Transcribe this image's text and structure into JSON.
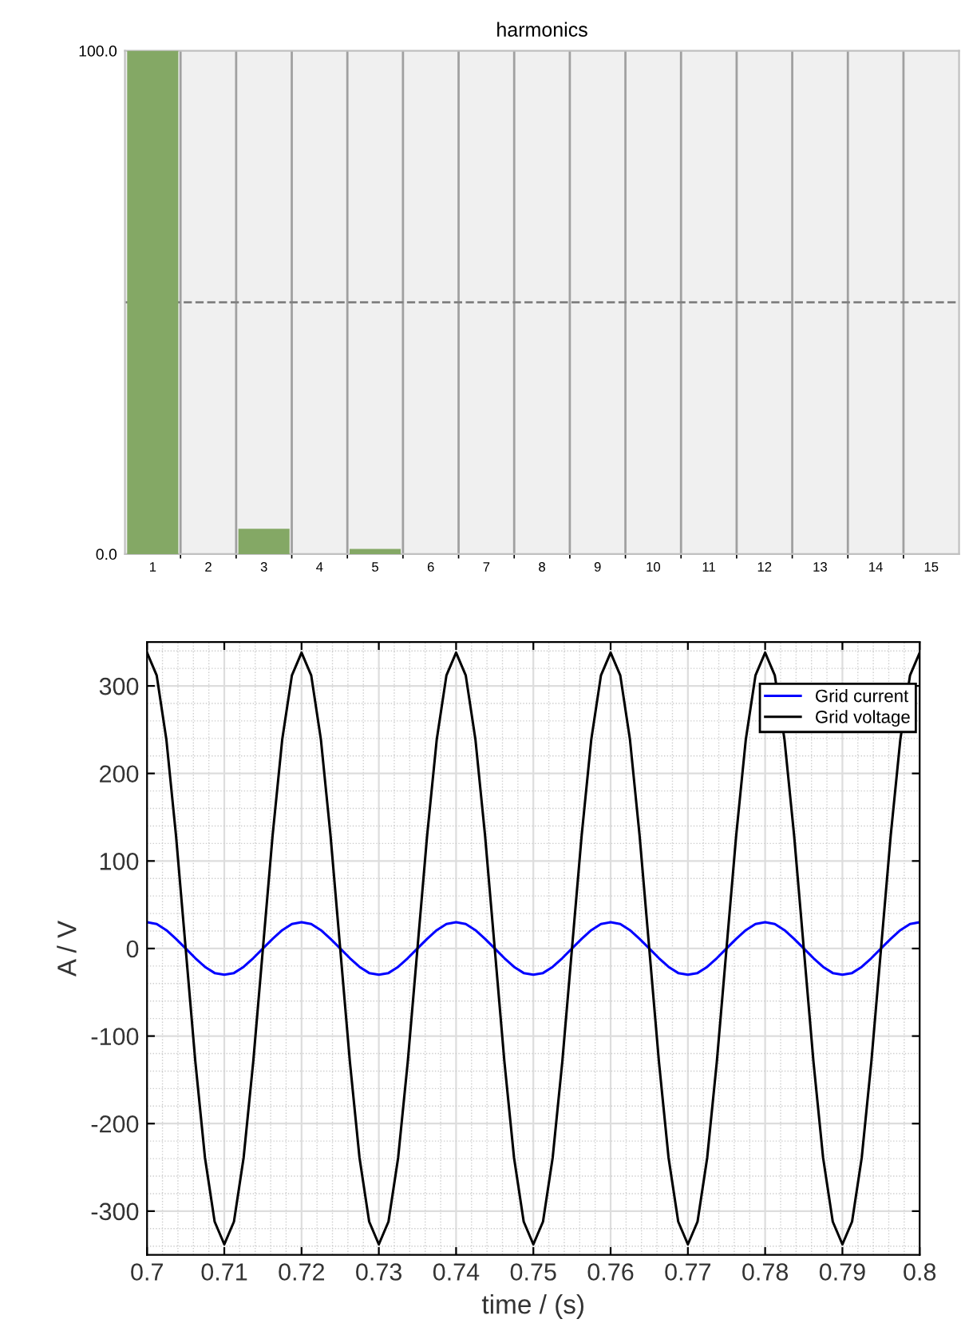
{
  "chart_data": [
    {
      "type": "bar",
      "title": "harmonics",
      "categories": [
        "1",
        "2",
        "3",
        "4",
        "5",
        "6",
        "7",
        "8",
        "9",
        "10",
        "11",
        "12",
        "13",
        "14",
        "15"
      ],
      "values": [
        100,
        0,
        5,
        0,
        1,
        0,
        0,
        0,
        0,
        0,
        0,
        0,
        0,
        0,
        0
      ],
      "color": "#84a865",
      "ylim": [
        0,
        100
      ],
      "yticks": [
        {
          "value": 0,
          "label": "0.0"
        },
        {
          "value": 100,
          "label": "100.0"
        }
      ],
      "ref_lines": [
        {
          "axis": "y",
          "value": 50,
          "line_style": "dashed",
          "color": "#808080"
        }
      ],
      "grid": "x"
    },
    {
      "type": "line",
      "xlabel": "time / (s)",
      "ylabel": "A / V",
      "x": [
        0.7,
        0.70125,
        0.7025,
        0.70375,
        0.705,
        0.70625,
        0.7075,
        0.70875,
        0.71,
        0.71125,
        0.7125,
        0.71375,
        0.715,
        0.71625,
        0.7175,
        0.71875,
        0.72,
        0.72125,
        0.7225,
        0.72375,
        0.725,
        0.72625,
        0.7275,
        0.72875,
        0.73,
        0.73125,
        0.7325,
        0.73375,
        0.735,
        0.73625,
        0.7375,
        0.73875,
        0.74,
        0.74125,
        0.7425,
        0.74375,
        0.745,
        0.74625,
        0.7475,
        0.74875,
        0.75,
        0.75125,
        0.7525,
        0.75375,
        0.755,
        0.75625,
        0.7575,
        0.75875,
        0.76,
        0.76125,
        0.7625,
        0.76375,
        0.765,
        0.76625,
        0.7675,
        0.76875,
        0.77,
        0.77125,
        0.7725,
        0.77375,
        0.775,
        0.77625,
        0.7775,
        0.77875,
        0.78,
        0.78125,
        0.7825,
        0.78375,
        0.785,
        0.78625,
        0.7875,
        0.78875,
        0.79,
        0.79125,
        0.7925,
        0.79375,
        0.795,
        0.79625,
        0.7975,
        0.79875,
        0.8
      ],
      "series": [
        {
          "name": "Grid current",
          "color": "#0000ff",
          "values": [
            30,
            28,
            21,
            11,
            0,
            -11,
            -21,
            -28,
            -30,
            -28,
            -21,
            -11,
            0,
            11,
            21,
            28,
            30,
            28,
            21,
            11,
            0,
            -11,
            -21,
            -28,
            -30,
            -28,
            -21,
            -11,
            0,
            11,
            21,
            28,
            30,
            28,
            21,
            11,
            0,
            -11,
            -21,
            -28,
            -30,
            -28,
            -21,
            -11,
            0,
            11,
            21,
            28,
            30,
            28,
            21,
            11,
            0,
            -11,
            -21,
            -28,
            -30,
            -28,
            -21,
            -11,
            0,
            11,
            21,
            28,
            30,
            28,
            21,
            11,
            0,
            -11,
            -21,
            -28,
            -30,
            -28,
            -21,
            -11,
            0,
            11,
            21,
            28,
            30
          ]
        },
        {
          "name": "Grid voltage",
          "color": "#000000",
          "values": [
            338,
            312,
            239,
            129,
            0,
            -129,
            -239,
            -312,
            -338,
            -312,
            -239,
            -129,
            0,
            129,
            239,
            312,
            338,
            312,
            239,
            129,
            0,
            -129,
            -239,
            -312,
            -338,
            -312,
            -239,
            -129,
            0,
            129,
            239,
            312,
            338,
            312,
            239,
            129,
            0,
            -129,
            -239,
            -312,
            -338,
            -312,
            -239,
            -129,
            0,
            129,
            239,
            312,
            338,
            312,
            239,
            129,
            0,
            -129,
            -239,
            -312,
            -338,
            -312,
            -239,
            -129,
            0,
            129,
            239,
            312,
            338,
            312,
            239,
            129,
            0,
            -129,
            -239,
            -312,
            -338,
            -312,
            -239,
            -129,
            0,
            129,
            239,
            312,
            338
          ]
        }
      ],
      "xlim": [
        0.7,
        0.8
      ],
      "xticks": [
        0.7,
        0.71,
        0.72,
        0.73,
        0.74,
        0.75,
        0.76,
        0.77,
        0.78,
        0.79,
        0.8
      ],
      "ylim": [
        -350,
        350
      ],
      "yticks": [
        -300,
        -200,
        -100,
        0,
        100,
        200,
        300
      ],
      "grid": true,
      "legend": "top right",
      "line_style": "solid",
      "marker": "none"
    }
  ]
}
